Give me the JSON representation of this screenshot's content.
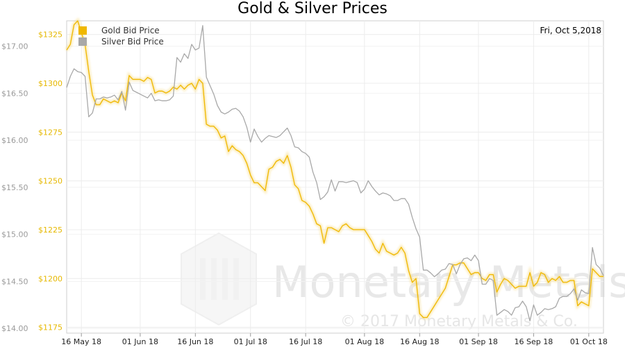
{
  "chart_data": {
    "type": "line",
    "title": "Gold & Silver Prices",
    "date_label": "Fri, Oct 5,2018",
    "watermark": "Monetary Metals",
    "copyright": "© 2017 Monetary Metals & Co.",
    "x_ticks": [
      "16 May 18",
      "01 Jun 18",
      "16 Jun 18",
      "01 Jul 18",
      "16 Jul 18",
      "01 Aug 18",
      "16 Aug 18",
      "01 Sep 18",
      "16 Sep 18",
      "01 Oct 18"
    ],
    "x_tick_days": [
      16,
      32,
      47,
      62,
      77,
      93,
      108,
      124,
      139,
      154
    ],
    "x_range_days": [
      12,
      158
    ],
    "y_gold": {
      "ticks": [
        "$1175",
        "$1200",
        "$1225",
        "$1250",
        "$1275",
        "$1300",
        "$1325"
      ],
      "range": [
        1172,
        1332
      ]
    },
    "y_silver": {
      "ticks": [
        "$14.00",
        "$14.50",
        "$15.00",
        "$15.50",
        "$16.00",
        "$16.50",
        "$17.00"
      ],
      "range": [
        13.95,
        17.27
      ]
    },
    "series": [
      {
        "name": "Gold Bid Price",
        "color": "#f0b800",
        "points": [
          [
            12,
            1317
          ],
          [
            13,
            1320
          ],
          [
            14,
            1330
          ],
          [
            15,
            1332
          ],
          [
            16,
            1326
          ],
          [
            17,
            1320
          ],
          [
            18,
            1306
          ],
          [
            19,
            1294
          ],
          [
            20,
            1289
          ],
          [
            21,
            1289
          ],
          [
            22,
            1292
          ],
          [
            23,
            1291
          ],
          [
            24,
            1290
          ],
          [
            25,
            1291
          ],
          [
            26,
            1290
          ],
          [
            27,
            1295
          ],
          [
            28,
            1291
          ],
          [
            29,
            1304
          ],
          [
            30,
            1302
          ],
          [
            31,
            1302
          ],
          [
            32,
            1302
          ],
          [
            33,
            1301
          ],
          [
            34,
            1303
          ],
          [
            35,
            1302
          ],
          [
            36,
            1295
          ],
          [
            37,
            1296
          ],
          [
            38,
            1296
          ],
          [
            39,
            1295
          ],
          [
            40,
            1296
          ],
          [
            41,
            1298
          ],
          [
            42,
            1297
          ],
          [
            43,
            1299
          ],
          [
            44,
            1297
          ],
          [
            45,
            1299
          ],
          [
            46,
            1300
          ],
          [
            47,
            1297
          ],
          [
            48,
            1302
          ],
          [
            49,
            1300
          ],
          [
            50,
            1279
          ],
          [
            51,
            1278
          ],
          [
            52,
            1278
          ],
          [
            53,
            1276
          ],
          [
            54,
            1272
          ],
          [
            55,
            1273
          ],
          [
            56,
            1265
          ],
          [
            57,
            1268
          ],
          [
            58,
            1266
          ],
          [
            59,
            1265
          ],
          [
            60,
            1263
          ],
          [
            61,
            1259
          ],
          [
            62,
            1253
          ],
          [
            63,
            1249
          ],
          [
            64,
            1249
          ],
          [
            65,
            1247
          ],
          [
            66,
            1245
          ],
          [
            67,
            1256
          ],
          [
            68,
            1257
          ],
          [
            69,
            1260
          ],
          [
            70,
            1261
          ],
          [
            71,
            1259
          ],
          [
            72,
            1263
          ],
          [
            73,
            1257
          ],
          [
            74,
            1248
          ],
          [
            75,
            1246
          ],
          [
            76,
            1240
          ],
          [
            77,
            1239
          ],
          [
            78,
            1237
          ],
          [
            79,
            1233
          ],
          [
            80,
            1228
          ],
          [
            81,
            1227
          ],
          [
            82,
            1218
          ],
          [
            83,
            1226
          ],
          [
            84,
            1226
          ],
          [
            85,
            1225
          ],
          [
            86,
            1224
          ],
          [
            87,
            1227
          ],
          [
            88,
            1228
          ],
          [
            89,
            1226
          ],
          [
            90,
            1225
          ],
          [
            91,
            1225
          ],
          [
            92,
            1225
          ],
          [
            93,
            1225
          ],
          [
            94,
            1222
          ],
          [
            95,
            1219
          ],
          [
            96,
            1215
          ],
          [
            97,
            1213
          ],
          [
            98,
            1218
          ],
          [
            99,
            1214
          ],
          [
            100,
            1213
          ],
          [
            101,
            1212
          ],
          [
            102,
            1213
          ],
          [
            103,
            1216
          ],
          [
            104,
            1213
          ],
          [
            105,
            1204
          ],
          [
            106,
            1198
          ],
          [
            107,
            1200
          ],
          [
            108,
            1182
          ],
          [
            109,
            1180
          ],
          [
            110,
            1180
          ],
          [
            111,
            1183
          ],
          [
            112,
            1186
          ],
          [
            113,
            1189
          ],
          [
            114,
            1192
          ],
          [
            115,
            1195
          ],
          [
            116,
            1201
          ],
          [
            117,
            1207
          ],
          [
            118,
            1207
          ],
          [
            119,
            1208
          ],
          [
            120,
            1208
          ],
          [
            121,
            1205
          ],
          [
            122,
            1202
          ],
          [
            123,
            1203
          ],
          [
            124,
            1203
          ],
          [
            125,
            1200
          ],
          [
            126,
            1199
          ],
          [
            127,
            1202
          ],
          [
            128,
            1202
          ],
          [
            129,
            1193
          ],
          [
            130,
            1197
          ],
          [
            131,
            1200
          ],
          [
            132,
            1199
          ],
          [
            133,
            1197
          ],
          [
            134,
            1195
          ],
          [
            135,
            1196
          ],
          [
            136,
            1196
          ],
          [
            137,
            1196
          ],
          [
            138,
            1203
          ],
          [
            139,
            1196
          ],
          [
            140,
            1198
          ],
          [
            141,
            1203
          ],
          [
            142,
            1202
          ],
          [
            143,
            1198
          ],
          [
            144,
            1200
          ],
          [
            145,
            1199
          ],
          [
            146,
            1201
          ],
          [
            147,
            1198
          ],
          [
            148,
            1198
          ],
          [
            149,
            1199
          ],
          [
            150,
            1199
          ],
          [
            151,
            1186
          ],
          [
            152,
            1188
          ],
          [
            153,
            1187
          ],
          [
            154,
            1186
          ],
          [
            155,
            1205
          ],
          [
            156,
            1203
          ],
          [
            157,
            1201
          ],
          [
            158,
            1201
          ]
        ]
      },
      {
        "name": "Silver Bid Price",
        "color": "#a8a8a8",
        "points": [
          [
            12,
            16.56
          ],
          [
            13,
            16.68
          ],
          [
            14,
            16.76
          ],
          [
            15,
            16.73
          ],
          [
            16,
            16.72
          ],
          [
            17,
            16.68
          ],
          [
            18,
            16.25
          ],
          [
            19,
            16.29
          ],
          [
            20,
            16.44
          ],
          [
            21,
            16.44
          ],
          [
            22,
            16.46
          ],
          [
            23,
            16.45
          ],
          [
            24,
            16.46
          ],
          [
            25,
            16.48
          ],
          [
            26,
            16.43
          ],
          [
            27,
            16.52
          ],
          [
            28,
            16.32
          ],
          [
            29,
            16.62
          ],
          [
            30,
            16.53
          ],
          [
            31,
            16.51
          ],
          [
            32,
            16.49
          ],
          [
            33,
            16.47
          ],
          [
            34,
            16.45
          ],
          [
            35,
            16.5
          ],
          [
            36,
            16.42
          ],
          [
            37,
            16.43
          ],
          [
            38,
            16.42
          ],
          [
            39,
            16.42
          ],
          [
            40,
            16.43
          ],
          [
            41,
            16.47
          ],
          [
            42,
            16.88
          ],
          [
            43,
            16.83
          ],
          [
            44,
            16.92
          ],
          [
            45,
            16.87
          ],
          [
            46,
            17.02
          ],
          [
            47,
            16.96
          ],
          [
            48,
            16.98
          ],
          [
            49,
            17.22
          ],
          [
            50,
            16.67
          ],
          [
            51,
            16.58
          ],
          [
            52,
            16.49
          ],
          [
            53,
            16.37
          ],
          [
            54,
            16.3
          ],
          [
            55,
            16.28
          ],
          [
            56,
            16.3
          ],
          [
            57,
            16.33
          ],
          [
            58,
            16.34
          ],
          [
            59,
            16.31
          ],
          [
            60,
            16.25
          ],
          [
            61,
            16.14
          ],
          [
            62,
            15.98
          ],
          [
            63,
            16.12
          ],
          [
            64,
            16.04
          ],
          [
            65,
            15.98
          ],
          [
            66,
            16.02
          ],
          [
            67,
            16.05
          ],
          [
            68,
            16.04
          ],
          [
            69,
            16.03
          ],
          [
            70,
            16.05
          ],
          [
            71,
            16.09
          ],
          [
            72,
            16.13
          ],
          [
            73,
            16.05
          ],
          [
            74,
            15.93
          ],
          [
            75,
            15.92
          ],
          [
            76,
            15.88
          ],
          [
            77,
            15.86
          ],
          [
            78,
            15.82
          ],
          [
            79,
            15.66
          ],
          [
            80,
            15.55
          ],
          [
            81,
            15.37
          ],
          [
            82,
            15.4
          ],
          [
            83,
            15.45
          ],
          [
            84,
            15.58
          ],
          [
            85,
            15.46
          ],
          [
            86,
            15.56
          ],
          [
            87,
            15.56
          ],
          [
            88,
            15.55
          ],
          [
            89,
            15.56
          ],
          [
            90,
            15.57
          ],
          [
            91,
            15.55
          ],
          [
            92,
            15.44
          ],
          [
            93,
            15.48
          ],
          [
            94,
            15.57
          ],
          [
            95,
            15.51
          ],
          [
            96,
            15.46
          ],
          [
            97,
            15.42
          ],
          [
            98,
            15.44
          ],
          [
            99,
            15.43
          ],
          [
            100,
            15.41
          ],
          [
            101,
            15.36
          ],
          [
            102,
            15.36
          ],
          [
            103,
            15.38
          ],
          [
            104,
            15.38
          ],
          [
            105,
            15.32
          ],
          [
            106,
            15.18
          ],
          [
            107,
            15.06
          ],
          [
            108,
            14.97
          ],
          [
            109,
            14.62
          ],
          [
            110,
            14.62
          ],
          [
            111,
            14.59
          ],
          [
            112,
            14.55
          ],
          [
            113,
            14.58
          ],
          [
            114,
            14.62
          ],
          [
            115,
            14.63
          ],
          [
            116,
            14.69
          ],
          [
            117,
            14.68
          ],
          [
            118,
            14.58
          ],
          [
            119,
            14.68
          ],
          [
            120,
            14.74
          ],
          [
            121,
            14.75
          ],
          [
            122,
            14.72
          ],
          [
            123,
            14.78
          ],
          [
            124,
            14.72
          ],
          [
            125,
            14.47
          ],
          [
            126,
            14.47
          ],
          [
            127,
            14.53
          ],
          [
            128,
            14.51
          ],
          [
            129,
            14.14
          ],
          [
            130,
            14.17
          ],
          [
            131,
            14.2
          ],
          [
            132,
            14.18
          ],
          [
            133,
            14.14
          ],
          [
            134,
            14.22
          ],
          [
            135,
            14.23
          ],
          [
            136,
            14.29
          ],
          [
            137,
            14.23
          ],
          [
            138,
            14.08
          ],
          [
            139,
            14.25
          ],
          [
            140,
            14.14
          ],
          [
            141,
            14.17
          ],
          [
            142,
            14.21
          ],
          [
            143,
            14.2
          ],
          [
            144,
            14.21
          ],
          [
            145,
            14.23
          ],
          [
            146,
            14.32
          ],
          [
            147,
            14.34
          ],
          [
            148,
            14.34
          ],
          [
            149,
            14.37
          ],
          [
            150,
            14.42
          ],
          [
            151,
            14.3
          ],
          [
            152,
            14.41
          ],
          [
            153,
            14.38
          ],
          [
            154,
            14.37
          ],
          [
            155,
            14.86
          ],
          [
            156,
            14.68
          ],
          [
            157,
            14.64
          ],
          [
            158,
            14.56
          ]
        ]
      }
    ]
  }
}
